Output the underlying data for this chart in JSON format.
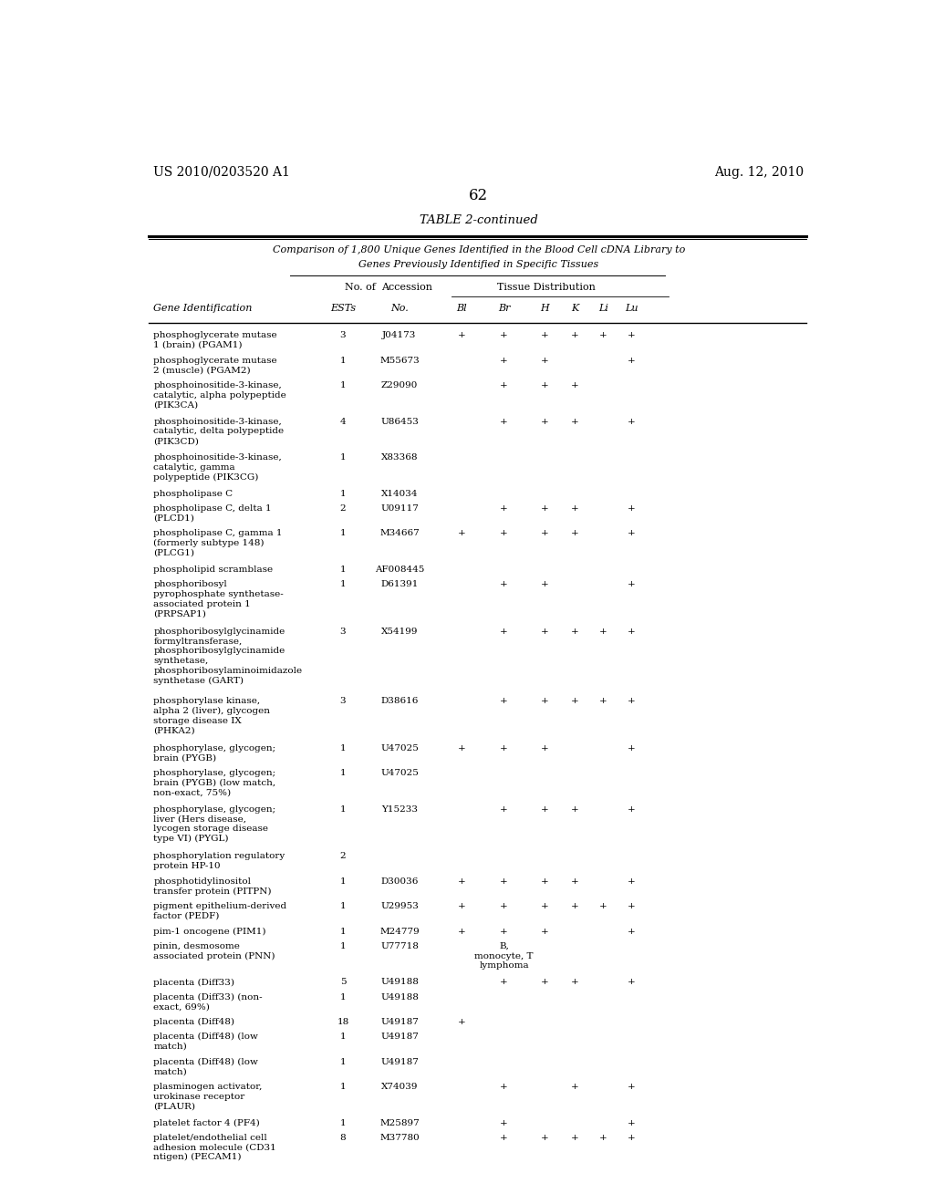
{
  "patent_number": "US 2010/0203520 A1",
  "patent_date": "Aug. 12, 2010",
  "page_number": "62",
  "table_title": "TABLE 2-continued",
  "table_subtitle1": "Comparison of 1,800 Unique Genes Identified in the Blood Cell cDNA Library to",
  "table_subtitle2": "Genes Previously Identified in Specific Tissues",
  "rows": [
    {
      "gene": "phosphoglycerate mutase\n1 (brain) (PGAM1)",
      "ests": "3",
      "acc": "J04173",
      "Bl": "+",
      "Br": "+",
      "H": "+",
      "K": "+",
      "Li": "+",
      "Lu": "+"
    },
    {
      "gene": "phosphoglycerate mutase\n2 (muscle) (PGAM2)",
      "ests": "1",
      "acc": "M55673",
      "Bl": "",
      "Br": "+",
      "H": "+",
      "K": "",
      "Li": "",
      "Lu": "+"
    },
    {
      "gene": "phosphoinositide-3-kinase,\ncatalytic, alpha polypeptide\n(PIK3CA)",
      "ests": "1",
      "acc": "Z29090",
      "Bl": "",
      "Br": "+",
      "H": "+",
      "K": "+",
      "Li": "",
      "Lu": ""
    },
    {
      "gene": "phosphoinositide-3-kinase,\ncatalytic, delta polypeptide\n(PIK3CD)",
      "ests": "4",
      "acc": "U86453",
      "Bl": "",
      "Br": "+",
      "H": "+",
      "K": "+",
      "Li": "",
      "Lu": "+"
    },
    {
      "gene": "phosphoinositide-3-kinase,\ncatalytic, gamma\npolypeptide (PIK3CG)",
      "ests": "1",
      "acc": "X83368",
      "Bl": "",
      "Br": "",
      "H": "",
      "K": "",
      "Li": "",
      "Lu": ""
    },
    {
      "gene": "phospholipase C",
      "ests": "1",
      "acc": "X14034",
      "Bl": "",
      "Br": "",
      "H": "",
      "K": "",
      "Li": "",
      "Lu": ""
    },
    {
      "gene": "phospholipase C, delta 1\n(PLCD1)",
      "ests": "2",
      "acc": "U09117",
      "Bl": "",
      "Br": "+",
      "H": "+",
      "K": "+",
      "Li": "",
      "Lu": "+"
    },
    {
      "gene": "phospholipase C, gamma 1\n(formerly subtype 148)\n(PLCG1)",
      "ests": "1",
      "acc": "M34667",
      "Bl": "+",
      "Br": "+",
      "H": "+",
      "K": "+",
      "Li": "",
      "Lu": "+"
    },
    {
      "gene": "phospholipid scramblase",
      "ests": "1",
      "acc": "AF008445",
      "Bl": "",
      "Br": "",
      "H": "",
      "K": "",
      "Li": "",
      "Lu": ""
    },
    {
      "gene": "phosphoribosyl\npyrophosphate synthetase-\nassociated protein 1\n(PRPSAP1)",
      "ests": "1",
      "acc": "D61391",
      "Bl": "",
      "Br": "+",
      "H": "+",
      "K": "",
      "Li": "",
      "Lu": "+"
    },
    {
      "gene": "phosphoribosylglycinamide\nformyltransferase,\nphosphoribosylglycinamide\nsynthetase,\nphosphoribosylaminoimidazole\nsynthetase (GART)",
      "ests": "3",
      "acc": "X54199",
      "Bl": "",
      "Br": "+",
      "H": "+",
      "K": "+",
      "Li": "+",
      "Lu": "+"
    },
    {
      "gene": "phosphorylase kinase,\nalpha 2 (liver), glycogen\nstorage disease IX\n(PHKA2)",
      "ests": "3",
      "acc": "D38616",
      "Bl": "",
      "Br": "+",
      "H": "+",
      "K": "+",
      "Li": "+",
      "Lu": "+"
    },
    {
      "gene": "phosphorylase, glycogen;\nbrain (PYGB)",
      "ests": "1",
      "acc": "U47025",
      "Bl": "+",
      "Br": "+",
      "H": "+",
      "K": "",
      "Li": "",
      "Lu": "+"
    },
    {
      "gene": "phosphorylase, glycogen;\nbrain (PYGB) (low match,\nnon-exact, 75%)",
      "ests": "1",
      "acc": "U47025",
      "Bl": "",
      "Br": "",
      "H": "",
      "K": "",
      "Li": "",
      "Lu": ""
    },
    {
      "gene": "phosphorylase, glycogen;\nliver (Hers disease,\nlycogen storage disease\ntype VI) (PYGL)",
      "ests": "1",
      "acc": "Y15233",
      "Bl": "",
      "Br": "+",
      "H": "+",
      "K": "+",
      "Li": "",
      "Lu": "+"
    },
    {
      "gene": "phosphorylation regulatory\nprotein HP-10",
      "ests": "2",
      "acc": "",
      "Bl": "",
      "Br": "",
      "H": "",
      "K": "",
      "Li": "",
      "Lu": ""
    },
    {
      "gene": "phosphotidylinositol\ntransfer protein (PITPN)",
      "ests": "1",
      "acc": "D30036",
      "Bl": "+",
      "Br": "+",
      "H": "+",
      "K": "+",
      "Li": "",
      "Lu": "+"
    },
    {
      "gene": "pigment epithelium-derived\nfactor (PEDF)",
      "ests": "1",
      "acc": "U29953",
      "Bl": "+",
      "Br": "+",
      "H": "+",
      "K": "+",
      "Li": "+",
      "Lu": "+"
    },
    {
      "gene": "pim-1 oncogene (PIM1)",
      "ests": "1",
      "acc": "M24779",
      "Bl": "+",
      "Br": "+",
      "H": "+",
      "K": "",
      "Li": "",
      "Lu": "+"
    },
    {
      "gene": "pinin, desmosome\nassociated protein (PNN)",
      "ests": "1",
      "acc": "U77718",
      "Bl": "",
      "Br": "B,\nmonocyte, T\nlymphoma",
      "H": "",
      "K": "",
      "Li": "",
      "Lu": ""
    },
    {
      "gene": "placenta (Diff33)",
      "ests": "5",
      "acc": "U49188",
      "Bl": "",
      "Br": "+",
      "H": "+",
      "K": "+",
      "Li": "",
      "Lu": "+"
    },
    {
      "gene": "placenta (Diff33) (non-\nexact, 69%)",
      "ests": "1",
      "acc": "U49188",
      "Bl": "",
      "Br": "",
      "H": "",
      "K": "",
      "Li": "",
      "Lu": ""
    },
    {
      "gene": "placenta (Diff48)",
      "ests": "18",
      "acc": "U49187",
      "Bl": "+",
      "Br": "",
      "H": "",
      "K": "",
      "Li": "",
      "Lu": ""
    },
    {
      "gene": "placenta (Diff48) (low\nmatch)",
      "ests": "1",
      "acc": "U49187",
      "Bl": "",
      "Br": "",
      "H": "",
      "K": "",
      "Li": "",
      "Lu": ""
    },
    {
      "gene": "placenta (Diff48) (low\nmatch)",
      "ests": "1",
      "acc": "U49187",
      "Bl": "",
      "Br": "",
      "H": "",
      "K": "",
      "Li": "",
      "Lu": ""
    },
    {
      "gene": "plasminogen activator,\nurokinase receptor\n(PLAUR)",
      "ests": "1",
      "acc": "X74039",
      "Bl": "",
      "Br": "+",
      "H": "",
      "K": "+",
      "Li": "",
      "Lu": "+"
    },
    {
      "gene": "platelet factor 4 (PF4)",
      "ests": "1",
      "acc": "M25897",
      "Bl": "",
      "Br": "+",
      "H": "",
      "K": "",
      "Li": "",
      "Lu": "+"
    },
    {
      "gene": "platelet/endothelial cell\nadhesion molecule (CD31\nntigen) (PECAM1)",
      "ests": "8",
      "acc": "M37780",
      "Bl": "",
      "Br": "+",
      "H": "+",
      "K": "+",
      "Li": "+",
      "Lu": "+"
    }
  ]
}
